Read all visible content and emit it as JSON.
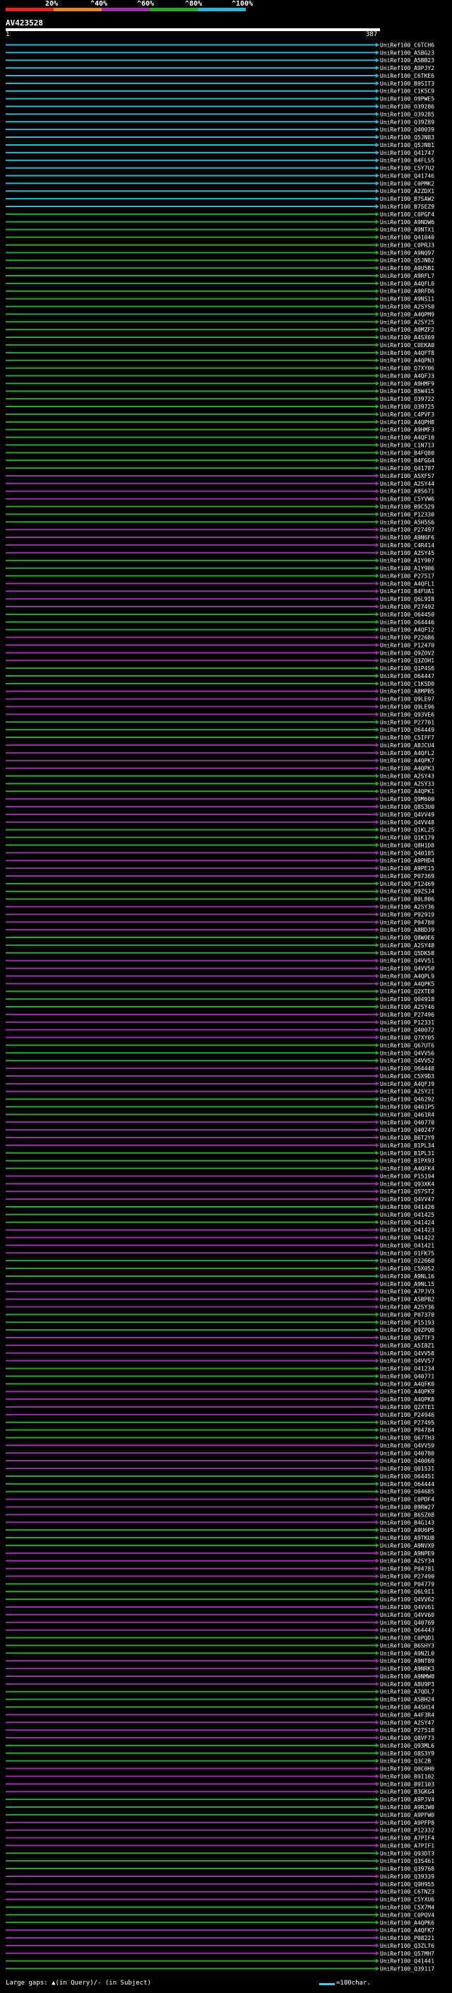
{
  "chart_data": {
    "type": "alignment-overview",
    "query": {
      "id": "AV423528",
      "start": 1,
      "end": 387
    },
    "scale_bins": [
      {
        "label": "20%",
        "color": "#e8202a"
      },
      {
        "label": "^40%",
        "color": "#e8842a"
      },
      {
        "label": "^60%",
        "color": "#9b2fa8"
      },
      {
        "label": "^80%",
        "color": "#2aa82a"
      },
      {
        "label": "^100%",
        "color": "#2ab8d8"
      }
    ],
    "legend": {
      "text": "Large gaps: ▲(in Query)/- (in Subject)",
      "scale_text": "=100char."
    },
    "hits": [
      "UniRef100_C6TCH6",
      "UniRef100_A5BG23",
      "UniRef100_A5BB23",
      "UniRef100_A9PJY2",
      "UniRef100_C6TKE6",
      "UniRef100_B9SIT3",
      "UniRef100_C1K5C9",
      "UniRef100_O9PWE5",
      "UniRef100_O39286",
      "UniRef100_O39285",
      "UniRef100_Q39Z89",
      "UniRef100_Q40039",
      "UniRef100_Q5JN83",
      "UniRef100_Q5JN81",
      "UniRef100_Q41747",
      "UniRef100_B4FLS5",
      "UniRef100_C5Y7U2",
      "UniRef100_Q41746",
      "UniRef100_C0PMK2",
      "UniRef100_A2ZDX1",
      "UniRef100_B7SAW2",
      "UniRef100_B7SEZ9",
      "UniRef100_C0PGF4",
      "UniRef100_A9NDW6",
      "UniRef100_A9NTX1",
      "UniRef100_Q41040",
      "UniRef100_C0PRJ3",
      "UniRef100_A9NQ97",
      "UniRef100_Q5JN82",
      "UniRef100_A9U5B1",
      "UniRef100_A9RFL7",
      "UniRef100_A4QFL0",
      "UniRef100_A9RFD6",
      "UniRef100_A9NS11",
      "UniRef100_A2SYS0",
      "UniRef100_A4QPM9",
      "UniRef100_A2SY25",
      "UniRef100_A0MZF2",
      "UniRef100_A4SX69",
      "UniRef100_C0EKA0",
      "UniRef100_A4QFT8",
      "UniRef100_A4QPN3",
      "UniRef100_Q7XY06",
      "UniRef100_A4QFJ3",
      "UniRef100_A9HMF9",
      "UniRef100_B5W415",
      "UniRef100_O39722",
      "UniRef100_O39725",
      "UniRef100_C4PVF3",
      "UniRef100_A4QPH8",
      "UniRef100_A9HMF3",
      "UniRef100_A4QF10",
      "UniRef100_C1N713",
      "UniRef100_B4FQ80",
      "UniRef100_B4FGG4",
      "UniRef100_Q41787",
      "UniRef100_A5XF57",
      "UniRef100_A2SY44",
      "UniRef100_A9S671",
      "UniRef100_C5YVW6",
      "UniRef100_B9C529",
      "UniRef100_P12330",
      "UniRef100_A5H5S6",
      "UniRef100_P27497",
      "UniRef100_A9N6F6",
      "UniRef100_C4R414",
      "UniRef100_A2SY45",
      "UniRef100_A1Y907",
      "UniRef100_A1Y906",
      "UniRef100_P27517",
      "UniRef100_A4QFL1",
      "UniRef100_B4FUA1",
      "UniRef100_Q6L9I8",
      "UniRef100_P27492",
      "UniRef100_O64450",
      "UniRef100_O64446",
      "UniRef100_A4QF12",
      "UniRef100_P22686",
      "UniRef100_P12470",
      "UniRef100_Q9ZOV2",
      "UniRef100_Q3ZOH1",
      "UniRef100_Q1P4S6",
      "UniRef100_O64447",
      "UniRef100_C1K5D0",
      "UniRef100_A8MPB5",
      "UniRef100_Q9LE97",
      "UniRef100_Q9LE96",
      "UniRef100_Q93VE6",
      "UniRef100_P27701",
      "UniRef100_O64449",
      "UniRef100_C5IFF7",
      "UniRef100_A8JCU4",
      "UniRef100_A4QFL2",
      "UniRef100_A4QPK7",
      "UniRef100_A4QPK3",
      "UniRef100_A2SY43",
      "UniRef100_A2SY33",
      "UniRef100_A4QPK1",
      "UniRef100_Q9M600",
      "UniRef100_Q8S3U0",
      "UniRef100_Q4VV49",
      "UniRef100_Q4VV48",
      "UniRef100_Q1KL25",
      "UniRef100_Q1K179",
      "UniRef100_Q8H1D8",
      "UniRef100_Q40185",
      "UniRef100_A9PHD4",
      "UniRef100_A9PE15",
      "UniRef100_P07369",
      "UniRef100_P12469",
      "UniRef100_Q9ZSJ4",
      "UniRef100_B0L806",
      "UniRef100_A2SY36",
      "UniRef100_P92919",
      "UniRef100_P04780",
      "UniRef100_A8BDJ9",
      "UniRef100_Q8W0E6",
      "UniRef100_A2SY48",
      "UniRef100_Q5DK58",
      "UniRef100_Q4VV51",
      "UniRef100_Q4VV50",
      "UniRef100_A4QPL9",
      "UniRef100_A4QPK5",
      "UniRef100_Q2XTE0",
      "UniRef100_Q04918",
      "UniRef100_A2SY46",
      "UniRef100_P27496",
      "UniRef100_P12331",
      "UniRef100_Q40072",
      "UniRef100_Q7XY05",
      "UniRef100_Q67UT6",
      "UniRef100_Q4VV56",
      "UniRef100_Q4VV52",
      "UniRef100_O64448",
      "UniRef100_C5X9D3",
      "UniRef100_A4QFJ9",
      "UniRef100_A2SY21",
      "UniRef100_Q46292",
      "UniRef100_Q461P5",
      "UniRef100_Q461R4",
      "UniRef100_Q40770",
      "UniRef100_Q40247",
      "UniRef100_B6T2Y9",
      "UniRef100_B1PL34",
      "UniRef100_B1PL31",
      "UniRef100_B1PX93",
      "UniRef100_A4QFK4",
      "UniRef100_P15194",
      "UniRef100_Q93XK4",
      "UniRef100_Q57ST2",
      "UniRef100_Q4VV47",
      "UniRef100_O41426",
      "UniRef100_O41425",
      "UniRef100_O41424",
      "UniRef100_O41423",
      "UniRef100_O41422",
      "UniRef100_O41421",
      "UniRef100_O1FK75",
      "UniRef100_O22660",
      "UniRef100_C5X052",
      "UniRef100_A9NL16",
      "UniRef100_A9NL15",
      "UniRef100_A7PJV3",
      "UniRef100_A5BPB2",
      "UniRef100_A2SY36",
      "UniRef100_P07370",
      "UniRef100_P15193",
      "UniRef100_Q9ZPQ0",
      "UniRef100_Q67TF3",
      "UniRef100_A5I8Z1",
      "UniRef100_Q4VV58",
      "UniRef100_Q4VV57",
      "UniRef100_O41234",
      "UniRef100_Q40771",
      "UniRef100_A4QFK0",
      "UniRef100_A4QPK9",
      "UniRef100_A4QPK8",
      "UniRef100_Q2XTE1",
      "UniRef100_P24946",
      "UniRef100_P27495",
      "UniRef100_P04784",
      "UniRef100_Q67TH3",
      "UniRef100_Q4VV59",
      "UniRef100_Q40780",
      "UniRef100_Q40060",
      "UniRef100_Q01531",
      "UniRef100_O64451",
      "UniRef100_O64444",
      "UniRef100_O04685",
      "UniRef100_C0PDF4",
      "UniRef100_B9RW27",
      "UniRef100_B6SZ08",
      "UniRef100_B4G143",
      "UniRef100_A9U6P5",
      "UniRef100_A9TKU8",
      "UniRef100_A9NVX9",
      "UniRef100_A9NPE9",
      "UniRef100_A2SY34",
      "UniRef100_P04781",
      "UniRef100_P27490",
      "UniRef100_P04779",
      "UniRef100_Q6L9I1",
      "UniRef100_Q4VV62",
      "UniRef100_Q4VV61",
      "UniRef100_Q4VV60",
      "UniRef100_Q40769",
      "UniRef100_Q64443",
      "UniRef100_C0PQD1",
      "UniRef100_B6SHY3",
      "UniRef100_A9NZL0",
      "UniRef100_A9NT89",
      "UniRef100_A9NRK3",
      "UniRef100_A9NMW0",
      "UniRef100_A8U9P3",
      "UniRef100_A7QDL7",
      "UniRef100_A5BH24",
      "UniRef100_A4SH14",
      "UniRef100_A4F3R4",
      "UniRef100_A2SY47",
      "UniRef100_P27518",
      "UniRef100_Q8VF73",
      "UniRef100_Q93ML6",
      "UniRef100_O8S3Y9",
      "UniRef100_Q3C2B",
      "UniRef100_Q0C0H0",
      "UniRef100_B9I102",
      "UniRef100_B9I103",
      "UniRef100_B3GKG4",
      "UniRef100_A9PJV4",
      "UniRef100_A9RJW0",
      "UniRef100_A9PFW0",
      "UniRef100_A9PFP8",
      "UniRef100_P12332",
      "UniRef100_A7PIF4",
      "UniRef100_A7PIF1",
      "UniRef100_Q93DT3",
      "UniRef100_Q3S461",
      "UniRef100_Q39768",
      "UniRef100_Q39339",
      "UniRef100_Q9H955",
      "UniRef100_C6TNZ3",
      "UniRef100_C5YXU6",
      "UniRef100_C5X7M4",
      "UniRef100_C0PQV4",
      "UniRef100_A4QPK6",
      "UniRef100_A4QFK7",
      "UniRef100_P08221",
      "UniRef100_Q3ZLT6",
      "UniRef100_Q57MH7",
      "UniRef100_Q41441",
      "UniRef100_Q39117"
    ]
  }
}
